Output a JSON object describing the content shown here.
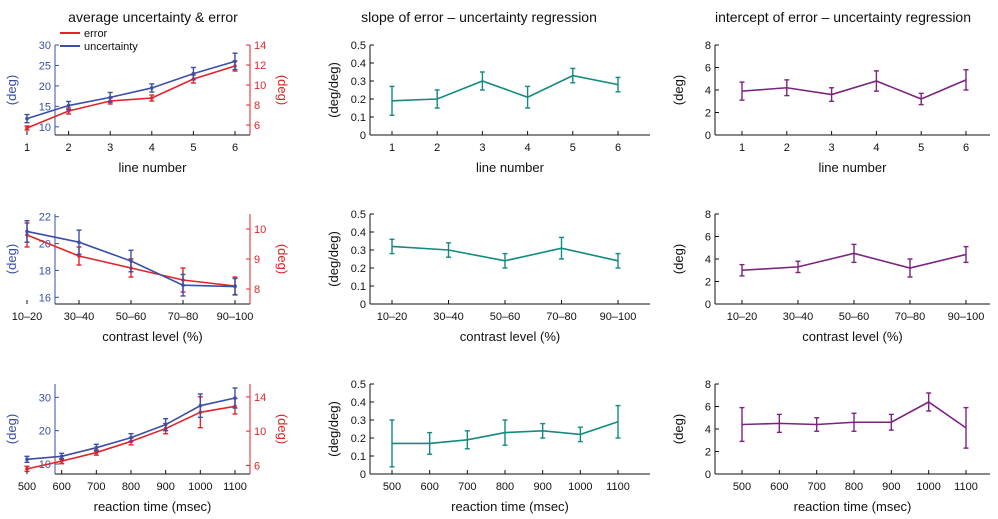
{
  "column_titles": [
    "average uncertainty & error",
    "slope of error – uncertainty regression",
    "intercept of error – uncertainty regression"
  ],
  "colors": {
    "uncertainty": "#3a4fa6",
    "error": "#e0242a",
    "slope": "#138a80",
    "intercept": "#7b237f",
    "axis": "#111111"
  },
  "chart_data": [
    {
      "type": "line",
      "xlabel": "line number",
      "ylabel": "(deg)",
      "ylabel_right": "(deg)",
      "categories": [
        "1",
        "2",
        "3",
        "4",
        "5",
        "6"
      ],
      "ylim": [
        8,
        30
      ],
      "yticks": [
        10,
        15,
        20,
        25,
        30
      ],
      "ylim_right": [
        5,
        14
      ],
      "yticks_right": [
        6,
        8,
        10,
        12,
        14
      ],
      "legend": "top-left",
      "series": [
        {
          "name": "error",
          "axis": "right",
          "color": "#e0242a",
          "values": [
            5.7,
            7.4,
            8.4,
            8.7,
            10.6,
            11.9
          ],
          "err": [
            0.2,
            0.3,
            0.3,
            0.3,
            0.4,
            0.5
          ]
        },
        {
          "name": "uncertainty",
          "axis": "left",
          "color": "#3a4fa6",
          "values": [
            12.0,
            15.2,
            17.2,
            19.5,
            23.0,
            26.0
          ],
          "err": [
            1.0,
            1.0,
            1.2,
            1.0,
            1.5,
            2.0
          ]
        }
      ]
    },
    {
      "type": "line",
      "xlabel": "line number",
      "ylabel": "(deg/deg)",
      "categories": [
        "1",
        "2",
        "3",
        "4",
        "5",
        "6"
      ],
      "ylim": [
        0,
        0.5
      ],
      "yticks": [
        0,
        0.1,
        0.2,
        0.3,
        0.4,
        0.5
      ],
      "series": [
        {
          "color": "#138a80",
          "values": [
            0.19,
            0.2,
            0.3,
            0.21,
            0.33,
            0.28
          ],
          "err": [
            0.08,
            0.05,
            0.05,
            0.06,
            0.04,
            0.04
          ]
        }
      ]
    },
    {
      "type": "line",
      "xlabel": "line number",
      "ylabel": "(deg)",
      "categories": [
        "1",
        "2",
        "3",
        "4",
        "5",
        "6"
      ],
      "ylim": [
        0,
        8
      ],
      "yticks": [
        0,
        2,
        4,
        6,
        8
      ],
      "series": [
        {
          "color": "#7b237f",
          "values": [
            3.9,
            4.2,
            3.6,
            4.8,
            3.2,
            4.9
          ],
          "err": [
            0.8,
            0.7,
            0.6,
            0.9,
            0.5,
            0.9
          ]
        }
      ]
    },
    {
      "type": "line",
      "xlabel": "contrast level (%)",
      "ylabel": "(deg)",
      "ylabel_right": "(deg)",
      "categories": [
        "10–20",
        "30–40",
        "50–60",
        "70–80",
        "90–100"
      ],
      "ylim": [
        15.5,
        22.2
      ],
      "yticks": [
        16,
        18,
        20,
        22
      ],
      "ylim_right": [
        7.5,
        10.5
      ],
      "yticks_right": [
        8,
        9,
        10
      ],
      "series": [
        {
          "name": "error",
          "axis": "right",
          "color": "#e0242a",
          "values": [
            9.8,
            9.1,
            8.7,
            8.3,
            8.1
          ],
          "err": [
            0.4,
            0.3,
            0.3,
            0.4,
            0.3
          ]
        },
        {
          "name": "uncertainty",
          "axis": "left",
          "color": "#3a4fa6",
          "values": [
            20.9,
            20.1,
            18.7,
            16.9,
            16.8
          ],
          "err": [
            0.8,
            0.9,
            0.8,
            0.8,
            0.6
          ]
        }
      ]
    },
    {
      "type": "line",
      "xlabel": "contrast level (%)",
      "ylabel": "(deg/deg)",
      "categories": [
        "10–20",
        "30–40",
        "50–60",
        "70–80",
        "90–100"
      ],
      "ylim": [
        0,
        0.5
      ],
      "yticks": [
        0,
        0.1,
        0.2,
        0.3,
        0.4,
        0.5
      ],
      "series": [
        {
          "color": "#138a80",
          "values": [
            0.32,
            0.3,
            0.24,
            0.31,
            0.24
          ],
          "err": [
            0.04,
            0.04,
            0.04,
            0.06,
            0.04
          ]
        }
      ]
    },
    {
      "type": "line",
      "xlabel": "contrast level (%)",
      "ylabel": "(deg)",
      "categories": [
        "10–20",
        "30–40",
        "50–60",
        "70–80",
        "90–100"
      ],
      "ylim": [
        0,
        8
      ],
      "yticks": [
        0,
        2,
        4,
        6,
        8
      ],
      "series": [
        {
          "color": "#7b237f",
          "values": [
            3.0,
            3.3,
            4.5,
            3.2,
            4.4
          ],
          "err": [
            0.5,
            0.5,
            0.8,
            0.8,
            0.7
          ]
        }
      ]
    },
    {
      "type": "line",
      "xlabel": "reaction time (msec)",
      "ylabel": "(deg)",
      "ylabel_right": "(deg)",
      "categories": [
        "500",
        "600",
        "700",
        "800",
        "900",
        "1000",
        "1100"
      ],
      "ylim": [
        7,
        34
      ],
      "yticks": [
        10,
        20,
        30
      ],
      "ylim_right": [
        5,
        15.5
      ],
      "yticks_right": [
        6,
        10,
        14
      ],
      "series": [
        {
          "name": "error",
          "axis": "right",
          "color": "#e0242a",
          "values": [
            5.6,
            6.5,
            7.5,
            8.8,
            10.3,
            12.2,
            12.9
          ],
          "err": [
            0.3,
            0.3,
            0.3,
            0.4,
            0.6,
            1.8,
            0.9
          ]
        },
        {
          "name": "uncertainty",
          "axis": "left",
          "color": "#3a4fa6",
          "values": [
            11.4,
            12.3,
            14.9,
            17.9,
            21.8,
            27.5,
            29.8
          ],
          "err": [
            0.9,
            0.9,
            1.0,
            1.2,
            1.8,
            3.5,
            3.0
          ]
        }
      ]
    },
    {
      "type": "line",
      "xlabel": "reaction time (msec)",
      "ylabel": "(deg/deg)",
      "categories": [
        "500",
        "600",
        "700",
        "800",
        "900",
        "1000",
        "1100"
      ],
      "ylim": [
        0,
        0.5
      ],
      "yticks": [
        0,
        0.1,
        0.2,
        0.3,
        0.4,
        0.5
      ],
      "series": [
        {
          "color": "#138a80",
          "values": [
            0.17,
            0.17,
            0.19,
            0.23,
            0.24,
            0.22,
            0.29
          ],
          "err": [
            0.13,
            0.06,
            0.05,
            0.07,
            0.04,
            0.04,
            0.09
          ]
        }
      ]
    },
    {
      "type": "line",
      "xlabel": "reaction time (msec)",
      "ylabel": "(deg)",
      "categories": [
        "500",
        "600",
        "700",
        "800",
        "900",
        "1000",
        "1100"
      ],
      "ylim": [
        0,
        8
      ],
      "yticks": [
        0,
        2,
        4,
        6,
        8
      ],
      "series": [
        {
          "color": "#7b237f",
          "values": [
            4.4,
            4.5,
            4.4,
            4.6,
            4.6,
            6.4,
            4.1
          ],
          "err": [
            1.5,
            0.8,
            0.6,
            0.8,
            0.7,
            0.8,
            1.8
          ]
        }
      ]
    }
  ]
}
